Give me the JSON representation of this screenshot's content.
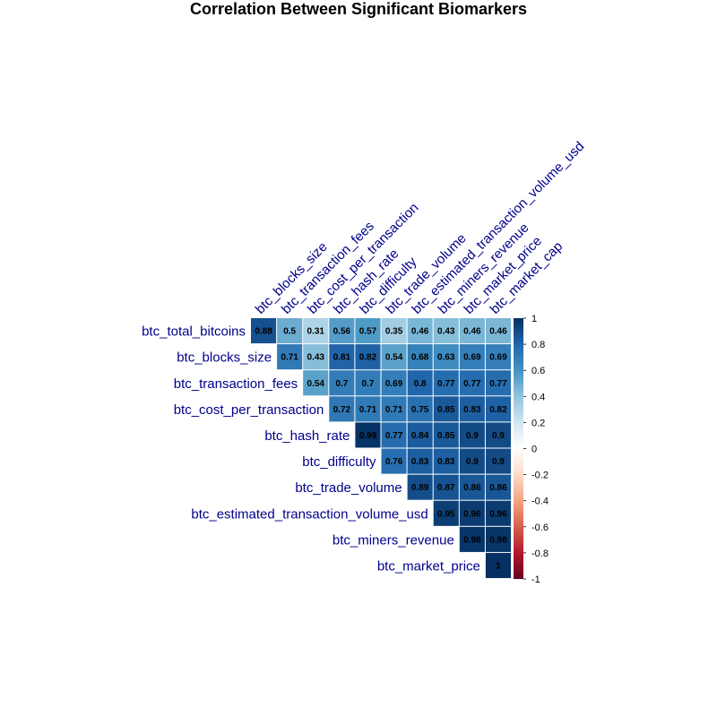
{
  "chart_data": {
    "type": "heatmap",
    "title": "Correlation Between Significant Biomarkers",
    "row_labels": [
      "btc_total_bitcoins",
      "btc_blocks_size",
      "btc_transaction_fees",
      "btc_cost_per_transaction",
      "btc_hash_rate",
      "btc_difficulty",
      "btc_trade_volume",
      "btc_estimated_transaction_volume_usd",
      "btc_miners_revenue",
      "btc_market_price"
    ],
    "col_labels": [
      "btc_blocks_size",
      "btc_transaction_fees",
      "btc_cost_per_transaction",
      "btc_hash_rate",
      "btc_difficulty",
      "btc_trade_volume",
      "btc_estimated_transaction_volume_usd",
      "btc_miners_revenue",
      "btc_market_price",
      "btc_market_cap"
    ],
    "values": [
      [
        0.88,
        0.5,
        0.31,
        0.56,
        0.57,
        0.35,
        0.46,
        0.43,
        0.46,
        0.46
      ],
      [
        0.71,
        0.43,
        0.81,
        0.82,
        0.54,
        0.68,
        0.63,
        0.69,
        0.69
      ],
      [
        0.54,
        0.7,
        0.7,
        0.69,
        0.8,
        0.77,
        0.77,
        0.77
      ],
      [
        0.72,
        0.71,
        0.71,
        0.75,
        0.85,
        0.83,
        0.82
      ],
      [
        0.99,
        0.77,
        0.84,
        0.85,
        0.9,
        0.9
      ],
      [
        0.76,
        0.83,
        0.83,
        0.9,
        0.9
      ],
      [
        0.89,
        0.87,
        0.86,
        0.86
      ],
      [
        0.95,
        0.96,
        0.96
      ],
      [
        0.98,
        0.98
      ],
      [
        1
      ]
    ],
    "value_labels": [
      [
        "0.88",
        "0.5",
        "0.31",
        "0.56",
        "0.57",
        "0.35",
        "0.46",
        "0.43",
        "0.46",
        "0.46"
      ],
      [
        "0.71",
        "0.43",
        "0.81",
        "0.82",
        "0.54",
        "0.68",
        "0.63",
        "0.69",
        "0.69"
      ],
      [
        "0.54",
        "0.7",
        "0.7",
        "0.69",
        "0.8",
        "0.77",
        "0.77",
        "0.77"
      ],
      [
        "0.72",
        "0.71",
        "0.71",
        "0.75",
        "0.85",
        "0.83",
        "0.82"
      ],
      [
        "0.99",
        "0.77",
        "0.84",
        "0.85",
        "0.9",
        "0.9"
      ],
      [
        "0.76",
        "0.83",
        "0.83",
        "0.9",
        "0.9"
      ],
      [
        "0.89",
        "0.87",
        "0.86",
        "0.86"
      ],
      [
        "0.95",
        "0.96",
        "0.96"
      ],
      [
        "0.98",
        "0.98"
      ],
      [
        "1"
      ]
    ],
    "colorbar": {
      "range": [
        -1,
        1
      ],
      "ticks": [
        "1",
        "0.8",
        "0.6",
        "0.4",
        "0.2",
        "0",
        "-0.2",
        "-0.4",
        "-0.6",
        "-0.8",
        "-1"
      ],
      "colors": [
        "#67001F",
        "#B2182B",
        "#D6604D",
        "#F4A582",
        "#FDDBC7",
        "#FFFFFF",
        "#D1E5F0",
        "#92C5DE",
        "#4393C3",
        "#2166AC",
        "#053061"
      ]
    },
    "layout": "upper-triangular",
    "grid": false,
    "legend": "right"
  }
}
